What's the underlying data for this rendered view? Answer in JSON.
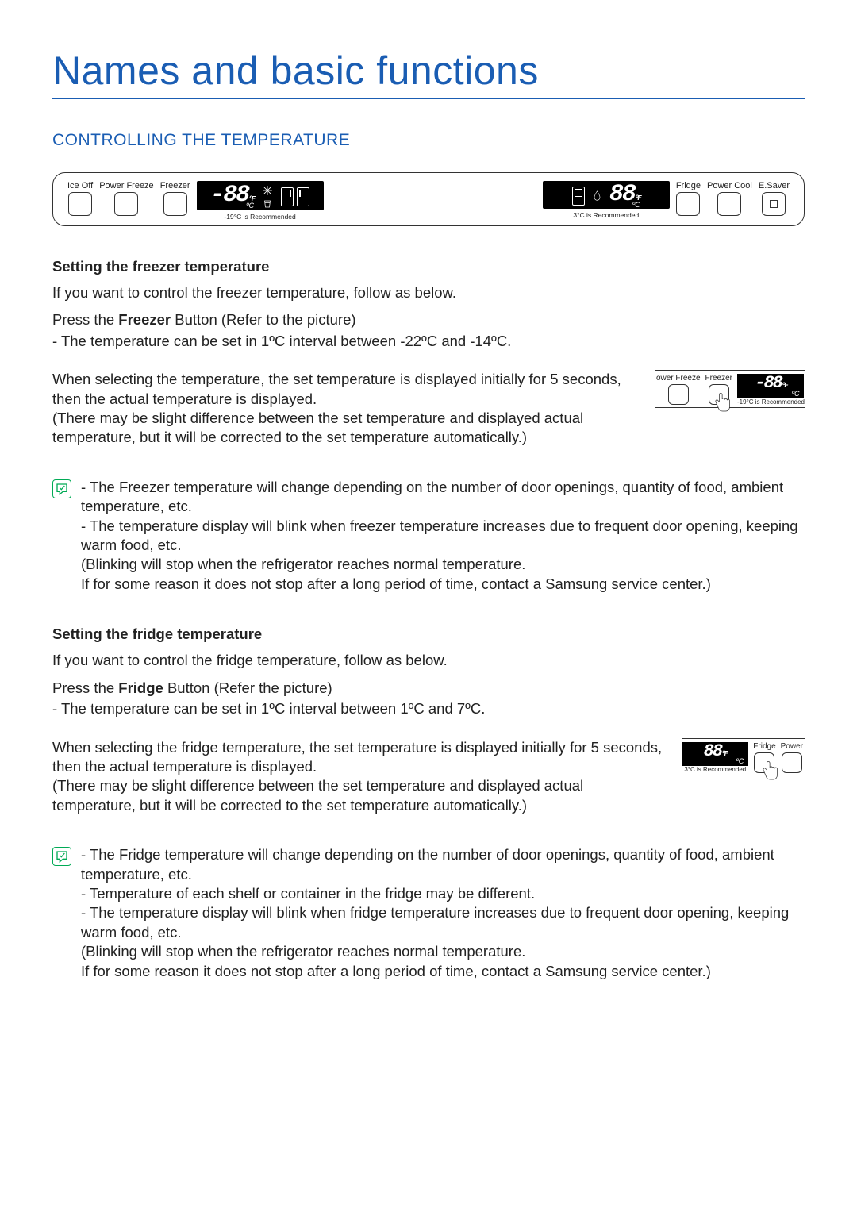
{
  "title": "Names and basic functions",
  "section": "CONTROLLING THE TEMPERATURE",
  "panel": {
    "left_buttons": [
      "Ice Off",
      "Power Freeze",
      "Freezer"
    ],
    "right_buttons": [
      "Fridge",
      "Power Cool",
      "E.Saver"
    ],
    "freezer_display": {
      "value": "-88",
      "unit_f": "ºF",
      "unit_c": "ºC",
      "rec": "-19°C is Recommended"
    },
    "fridge_display": {
      "value": "88",
      "unit_f": "ºF",
      "unit_c": "ºC",
      "rec": "3°C is Recommended"
    }
  },
  "freezer": {
    "heading": "Setting the freezer temperature",
    "intro": "If you want to control the freezer temperature, follow as below.",
    "press_pre": "Press the ",
    "press_bold": "Freezer",
    "press_post": " Button (Refer to the picture)",
    "range": "- The temperature can be set in 1ºC interval between -22ºC and -14ºC.",
    "detail": "When selecting the temperature, the set temperature is displayed initially for 5 seconds, then the actual temperature is displayed.\n(There may be slight difference between the set temperature and displayed actual temperature, but it will be corrected to the set temperature automatically.)",
    "fig_labels": [
      "ower Freeze",
      "Freezer"
    ],
    "fig_display": {
      "value": "-88",
      "rec": "-19°C is Recommended"
    },
    "notes": [
      "- The Freezer temperature will change depending on the number of door openings, quantity of food, ambient temperature, etc.",
      "- The temperature display will blink when freezer temperature increases due to frequent door opening, keeping warm food, etc.",
      "  (Blinking will stop when the refrigerator reaches normal temperature.",
      "   If for some reason it does not stop after a long period of time, contact a Samsung service center.)"
    ]
  },
  "fridge": {
    "heading": "Setting the fridge temperature",
    "intro": "If you want to control the fridge temperature, follow as below.",
    "press_pre": "Press the ",
    "press_bold": "Fridge",
    "press_post": " Button (Refer the picture)",
    "range": "- The temperature can be set in 1ºC interval between 1ºC and 7ºC.",
    "detail": "When selecting the fridge temperature, the set temperature is displayed initially for 5 seconds, then the actual temperature is displayed.\n(There may be slight difference between the set temperature and displayed actual temperature, but it will be corrected to the set temperature automatically.)",
    "fig_labels": [
      "Fridge",
      "Power"
    ],
    "fig_display": {
      "value": "88",
      "rec": "3°C is Recommended"
    },
    "notes": [
      "- The Fridge temperature will change depending on the number of door openings, quantity of food, ambient temperature, etc.",
      "- Temperature of each shelf or container in the fridge may be different.",
      "- The temperature display will blink when fridge temperature increases due to frequent door opening, keeping warm food, etc.",
      "  (Blinking will stop when the refrigerator reaches normal temperature.",
      "   If for some reason it does not stop after a long period of time, contact a Samsung service center.)"
    ]
  },
  "colors": {
    "accent": "#1a5db3",
    "text": "#222222",
    "panel_bg": "#000000",
    "note_icon": "#00aa55"
  }
}
